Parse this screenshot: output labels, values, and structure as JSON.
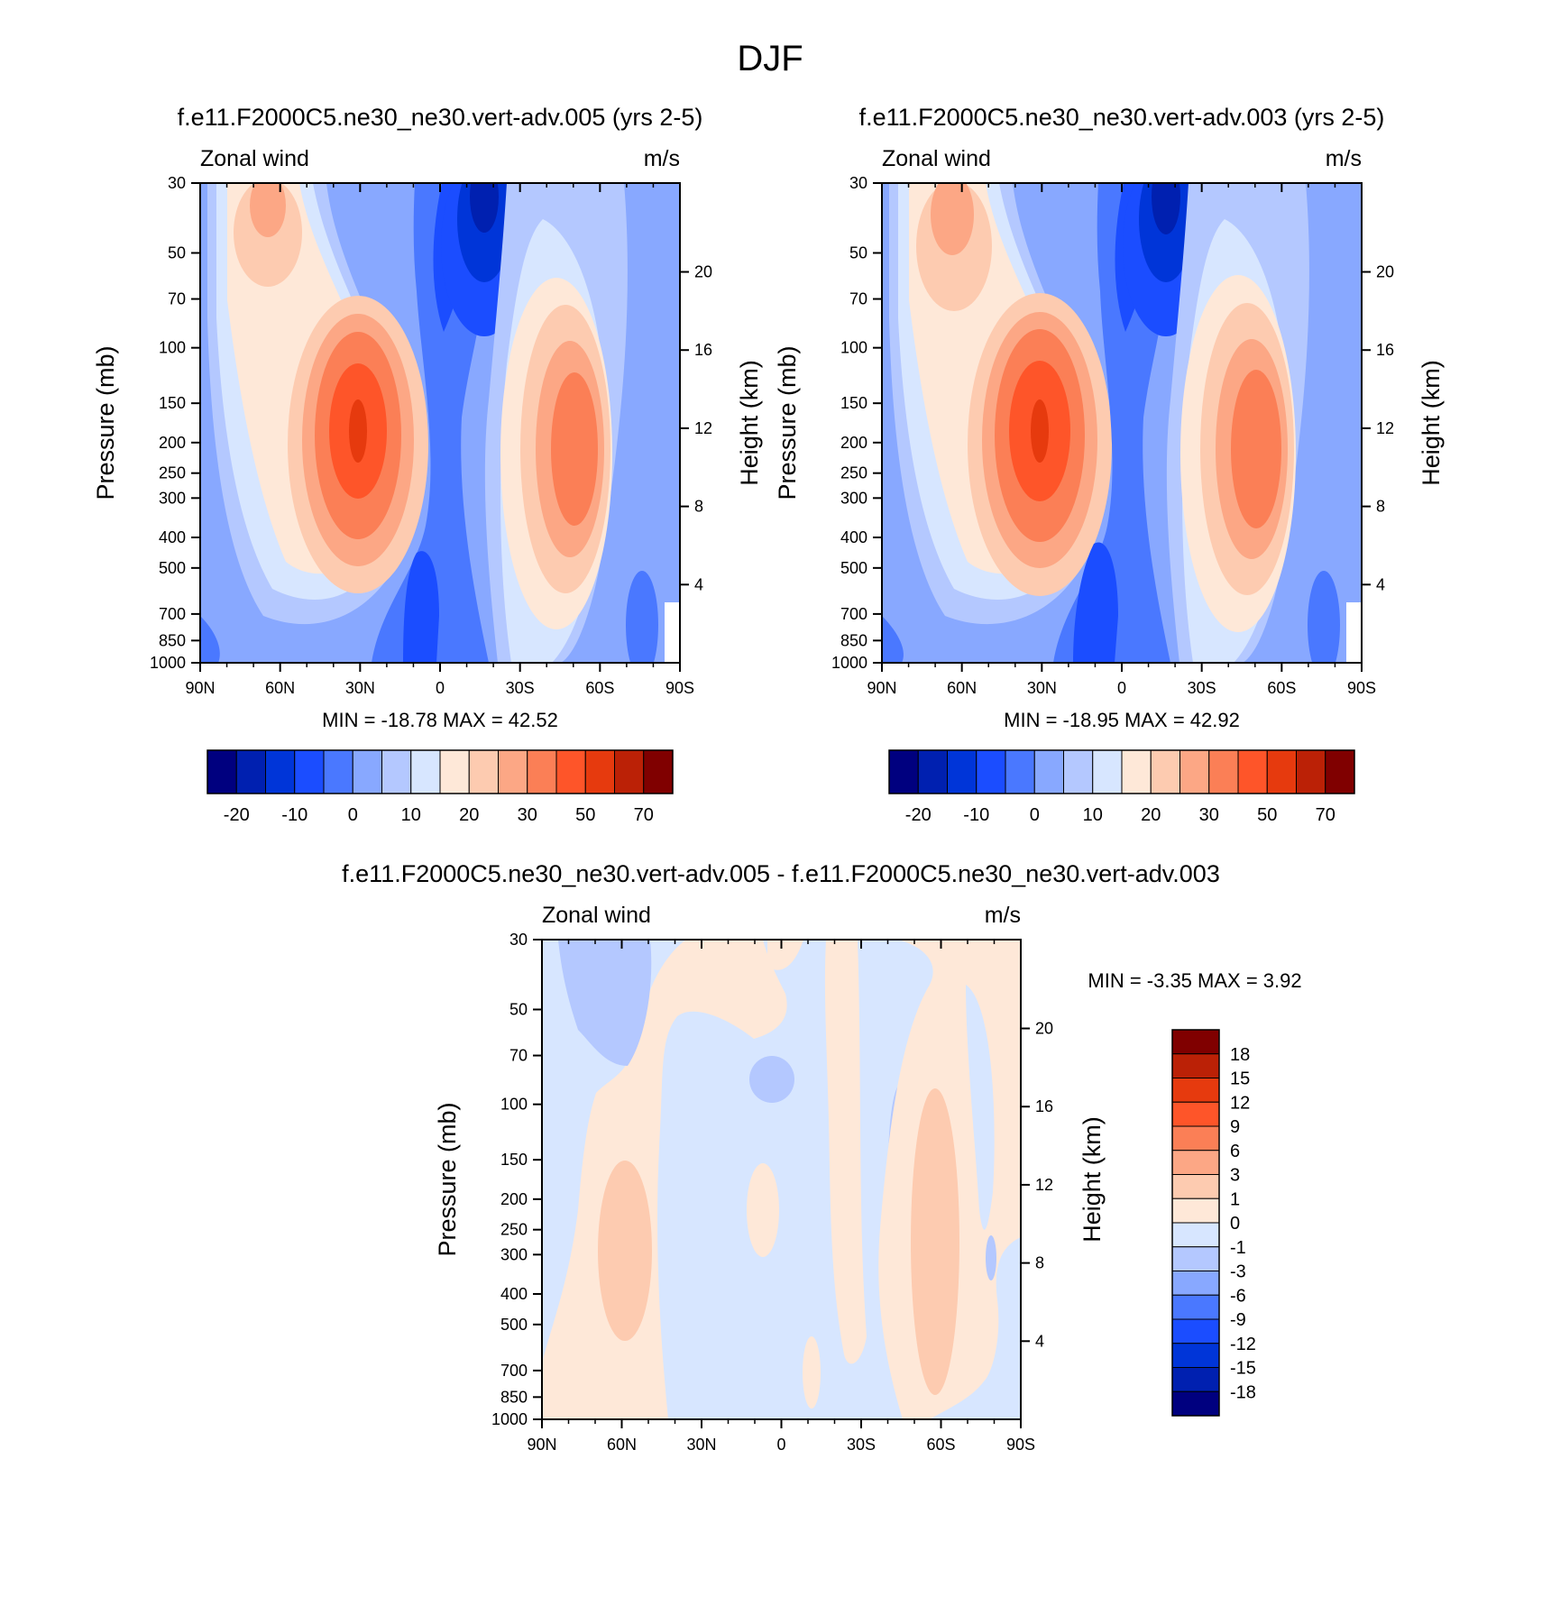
{
  "figure": {
    "title": "DJF"
  },
  "panels": [
    {
      "title": "f.e11.F2000C5.ne30_ne30.vert-adv.005 (yrs 2-5)",
      "left_string": "Zonal wind",
      "right_string": "m/s",
      "minmax": "MIN = -18.78  MAX =  42.52",
      "y_label": "Pressure (mb)",
      "y2_label": "Height (km)"
    },
    {
      "title": "f.e11.F2000C5.ne30_ne30.vert-adv.003 (yrs 2-5)",
      "left_string": "Zonal wind",
      "right_string": "m/s",
      "minmax": "MIN = -18.95  MAX =  42.92",
      "y_label": "Pressure (mb)",
      "y2_label": "Height (km)"
    },
    {
      "title": "f.e11.F2000C5.ne30_ne30.vert-adv.005 - f.e11.F2000C5.ne30_ne30.vert-adv.003",
      "left_string": "Zonal wind",
      "right_string": "m/s",
      "minmax": "MIN =  -3.35  MAX =   3.92",
      "y_label": "Pressure (mb)",
      "y2_label": "Height (km)"
    }
  ],
  "axes": {
    "x_ticks": [
      "90N",
      "60N",
      "30N",
      "0",
      "30S",
      "60S",
      "90S"
    ],
    "y_ticks": [
      "30",
      "50",
      "70",
      "100",
      "150",
      "200",
      "250",
      "300",
      "400",
      "500",
      "700",
      "850",
      "1000"
    ],
    "y_tick_values": [
      30,
      50,
      70,
      100,
      150,
      200,
      250,
      300,
      400,
      500,
      700,
      850,
      1000
    ],
    "y2_ticks": [
      "20",
      "16",
      "12",
      "8",
      "4"
    ],
    "y2_tick_values": [
      20,
      16,
      12,
      8,
      4
    ]
  },
  "colorbars": {
    "main": {
      "colors": [
        "#00007f",
        "#0020b0",
        "#0035d8",
        "#1b4dff",
        "#4a78ff",
        "#88a8ff",
        "#b4c8ff",
        "#d7e6ff",
        "#fee8d8",
        "#fdcbb0",
        "#fca785",
        "#fb7f56",
        "#fe5529",
        "#e63a0e",
        "#bb2106",
        "#800000"
      ],
      "labels": [
        "-20",
        "-10",
        "0",
        "10",
        "20",
        "30",
        "50",
        "70"
      ]
    },
    "diff": {
      "colors": [
        "#800000",
        "#bb2106",
        "#e63a0e",
        "#fe5529",
        "#fb7f56",
        "#fca785",
        "#fdcbb0",
        "#fee8d8",
        "#d7e6ff",
        "#b4c8ff",
        "#88a8ff",
        "#4a78ff",
        "#1b4dff",
        "#0035d8",
        "#0020b0",
        "#00007f"
      ],
      "labels": [
        "18",
        "15",
        "12",
        "9",
        "6",
        "3",
        "1",
        "0",
        "-1",
        "-3",
        "-6",
        "-9",
        "-12",
        "-15",
        "-18"
      ]
    }
  },
  "chart_data": [
    {
      "type": "heatmap",
      "title": "f.e11.F2000C5.ne30_ne30.vert-adv.005 (yrs 2-5)",
      "variable": "Zonal wind",
      "units": "m/s",
      "xlabel": "",
      "ylabel": "Pressure (mb)",
      "y2label": "Height (km)",
      "x_range": [
        "90N",
        "90S"
      ],
      "y_range_mb": [
        1000,
        30
      ],
      "y_scale": "log",
      "min": -18.78,
      "max": 42.52,
      "features": [
        {
          "kind": "westerly jet max",
          "lat": 30,
          "pressure_mb": 200,
          "value": 42.52
        },
        {
          "kind": "westerly jet",
          "lat": -48,
          "pressure_mb": 250,
          "value": 35
        },
        {
          "kind": "easterly min",
          "lat": -13,
          "pressure_mb": 30,
          "value": -18.78
        },
        {
          "kind": "westerly",
          "lat": 60,
          "pressure_mb": 30,
          "value": 22
        }
      ]
    },
    {
      "type": "heatmap",
      "title": "f.e11.F2000C5.ne30_ne30.vert-adv.003 (yrs 2-5)",
      "variable": "Zonal wind",
      "units": "m/s",
      "xlabel": "",
      "ylabel": "Pressure (mb)",
      "y2label": "Height (km)",
      "x_range": [
        "90N",
        "90S"
      ],
      "y_range_mb": [
        1000,
        30
      ],
      "y_scale": "log",
      "min": -18.95,
      "max": 42.92,
      "features": [
        {
          "kind": "westerly jet max",
          "lat": 30,
          "pressure_mb": 200,
          "value": 42.92
        },
        {
          "kind": "westerly jet",
          "lat": -48,
          "pressure_mb": 250,
          "value": 35
        },
        {
          "kind": "easterly min",
          "lat": -13,
          "pressure_mb": 30,
          "value": -18.95
        },
        {
          "kind": "westerly",
          "lat": 60,
          "pressure_mb": 35,
          "value": 25
        }
      ]
    },
    {
      "type": "heatmap",
      "title": "f.e11.F2000C5.ne30_ne30.vert-adv.005 - f.e11.F2000C5.ne30_ne30.vert-adv.003",
      "variable": "Zonal wind",
      "units": "m/s",
      "xlabel": "",
      "ylabel": "Pressure (mb)",
      "y2label": "Height (km)",
      "x_range": [
        "90N",
        "90S"
      ],
      "y_range_mb": [
        1000,
        30
      ],
      "y_scale": "log",
      "min": -3.35,
      "max": 3.92
    }
  ]
}
